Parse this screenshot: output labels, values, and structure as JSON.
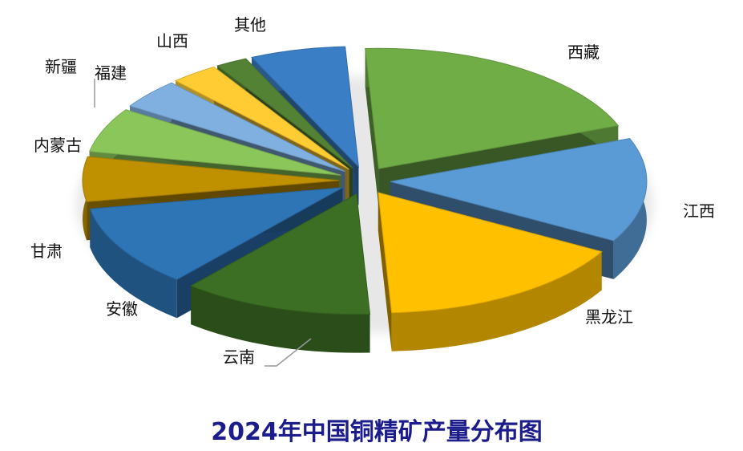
{
  "chart_data": {
    "type": "pie",
    "title": "2024年中国铜精矿产量分布图",
    "categories": [
      "西藏",
      "江西",
      "黑龙江",
      "云南",
      "安徽",
      "甘肃",
      "内蒙古",
      "新疆",
      "福建",
      "山西",
      "其他"
    ],
    "values": [
      20,
      14,
      16,
      12,
      11,
      6,
      6,
      4,
      3,
      2,
      6
    ],
    "colors": [
      "#70ad47",
      "#5b9bd5",
      "#ffc000",
      "#3c6e23",
      "#2e75b6",
      "#bf9000",
      "#8ac65a",
      "#7fb0e0",
      "#ffcc33",
      "#548235",
      "#3a7fc6"
    ],
    "style": "3d-exploded",
    "legend": "none"
  }
}
